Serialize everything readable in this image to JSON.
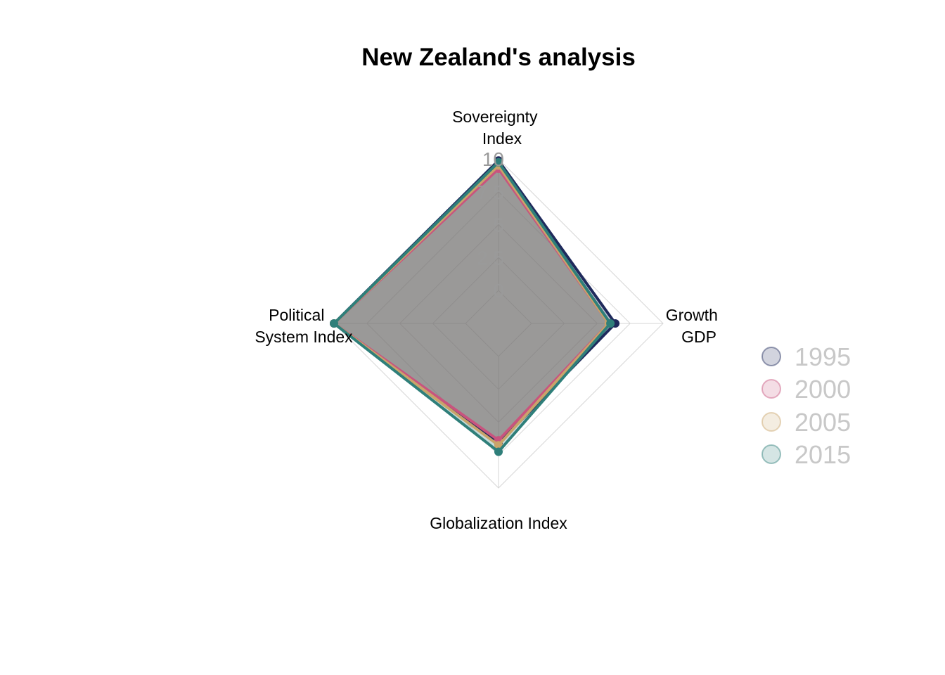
{
  "chart_data": {
    "type": "radar",
    "title": "New Zealand's analysis",
    "axes": [
      {
        "lines": [
          "Sovereignty",
          "Index"
        ]
      },
      {
        "lines": [
          "Growth",
          "GDP"
        ]
      },
      {
        "lines": [
          "Globalization Index"
        ]
      },
      {
        "lines": [
          "Political",
          "System Index"
        ]
      }
    ],
    "range": [
      0,
      10
    ],
    "ticks": [
      "0",
      "2.5",
      "5",
      "7.5",
      "10"
    ],
    "grid": true,
    "legend_position": "right",
    "series": [
      {
        "name": "1995",
        "color": "#1f2a5c",
        "values": [
          9.9,
          7.1,
          7.3,
          10
        ]
      },
      {
        "name": "2000",
        "color": "#c8547e",
        "values": [
          9.4,
          6.7,
          7.1,
          10
        ]
      },
      {
        "name": "2005",
        "color": "#c9a46a",
        "values": [
          9.6,
          6.7,
          7.4,
          10
        ]
      },
      {
        "name": "2015",
        "color": "#2f7f7a",
        "values": [
          9.8,
          6.8,
          7.8,
          10
        ]
      }
    ]
  }
}
